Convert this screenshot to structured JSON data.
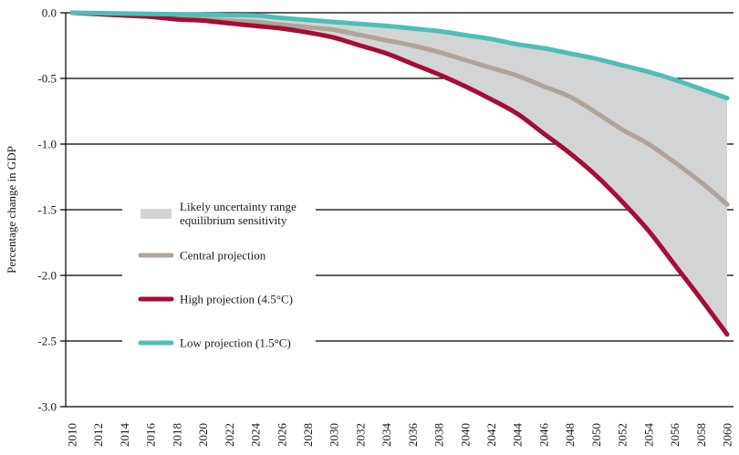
{
  "chart_data": {
    "type": "line",
    "title": "",
    "xlabel": "",
    "ylabel": "Percentage change in GDP",
    "xlim": [
      2010,
      2060
    ],
    "ylim": [
      -3.0,
      0.0
    ],
    "grid": "horizontal",
    "x_ticks": [
      2010,
      2012,
      2014,
      2016,
      2018,
      2020,
      2022,
      2024,
      2026,
      2028,
      2030,
      2032,
      2034,
      2036,
      2038,
      2040,
      2042,
      2044,
      2046,
      2048,
      2050,
      2052,
      2054,
      2056,
      2058,
      2060
    ],
    "y_ticks": [
      0.0,
      -0.5,
      -1.0,
      -1.5,
      -2.0,
      -2.5,
      -3.0
    ],
    "y_tick_labels": [
      "0.0",
      "-0.5",
      "-1.0",
      "-1.5",
      "-2.0",
      "-2.5",
      "-3.0"
    ],
    "x": [
      2010,
      2012,
      2014,
      2016,
      2018,
      2020,
      2022,
      2024,
      2026,
      2028,
      2030,
      2032,
      2034,
      2036,
      2038,
      2040,
      2042,
      2044,
      2046,
      2048,
      2050,
      2052,
      2054,
      2056,
      2058,
      2060
    ],
    "series": [
      {
        "name": "Likely uncertainty range equilibrium sensitivity",
        "kind": "band",
        "color": "#d3d4d6",
        "lower_series": "High projection (4.5°C)",
        "upper_series": "Low projection (1.5°C)"
      },
      {
        "name": "Central projection",
        "kind": "line",
        "color": "#b0a398",
        "values": [
          0.0,
          -0.01,
          -0.02,
          -0.03,
          -0.04,
          -0.05,
          -0.06,
          -0.07,
          -0.09,
          -0.11,
          -0.13,
          -0.17,
          -0.21,
          -0.25,
          -0.3,
          -0.36,
          -0.42,
          -0.48,
          -0.56,
          -0.64,
          -0.76,
          -0.89,
          -1.0,
          -1.14,
          -1.29,
          -1.46
        ]
      },
      {
        "name": "High projection (4.5°C)",
        "kind": "line",
        "color": "#a50d35",
        "values": [
          0.0,
          -0.01,
          -0.02,
          -0.03,
          -0.05,
          -0.06,
          -0.08,
          -0.1,
          -0.12,
          -0.15,
          -0.19,
          -0.25,
          -0.31,
          -0.39,
          -0.47,
          -0.56,
          -0.66,
          -0.77,
          -0.92,
          -1.07,
          -1.24,
          -1.44,
          -1.66,
          -1.92,
          -2.18,
          -2.45
        ]
      },
      {
        "name": "Low projection (1.5°C)",
        "kind": "line",
        "color": "#4dbfb7",
        "values": [
          0.0,
          -0.003,
          -0.006,
          -0.009,
          -0.012,
          -0.015,
          -0.018,
          -0.02,
          -0.04,
          -0.055,
          -0.07,
          -0.085,
          -0.1,
          -0.12,
          -0.14,
          -0.17,
          -0.2,
          -0.24,
          -0.27,
          -0.31,
          -0.35,
          -0.4,
          -0.45,
          -0.51,
          -0.58,
          -0.65
        ]
      }
    ],
    "legend": {
      "placement": "center-left",
      "entries": [
        {
          "label_lines": [
            "Likely uncertainty range",
            "equilibrium sensitivity"
          ],
          "swatch": "band",
          "color": "#d3d4d6"
        },
        {
          "label_lines": [
            "Central projection"
          ],
          "swatch": "line",
          "color": "#b0a398"
        },
        {
          "label_lines": [
            "High projection (4.5°C)"
          ],
          "swatch": "line",
          "color": "#a50d35"
        },
        {
          "label_lines": [
            "Low projection (1.5°C)"
          ],
          "swatch": "line",
          "color": "#4dbfb7"
        }
      ]
    }
  }
}
